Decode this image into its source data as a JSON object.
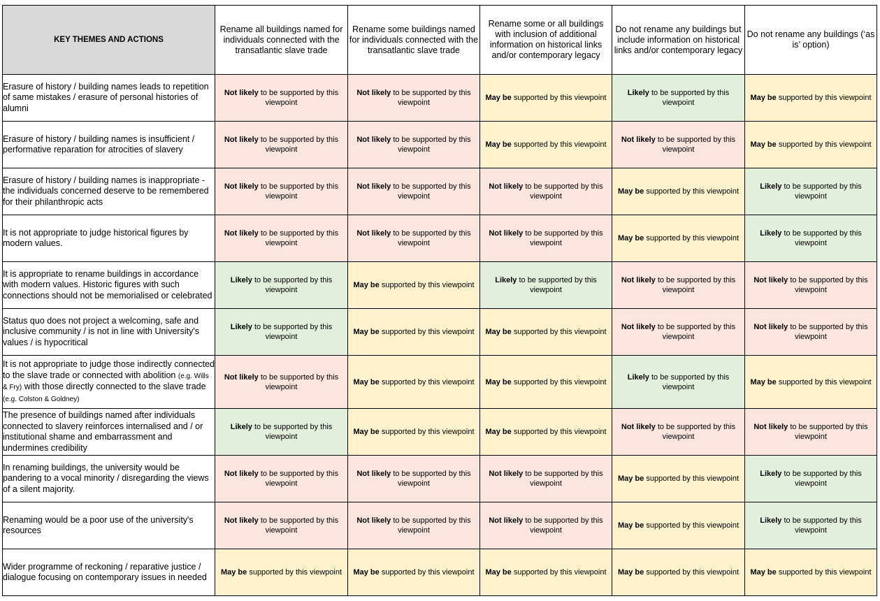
{
  "header": {
    "key_label": "KEY THEMES AND ACTIONS",
    "options": [
      "Rename all buildings named for individuals connected with the transatlantic slave trade",
      "Rename some buildings named for individuals connected with the transatlantic slave trade",
      "Rename some or all buildings with inclusion of additional information on historical links and/or contemporary legacy",
      "Do not rename any buildings but include information on historical links and/or contemporary legacy",
      "Do not rename any buildings (‘as is’ option)"
    ]
  },
  "labels": {
    "not_likely_bold": "Not likely",
    "not_likely_rest": " to be supported by this viewpoint",
    "may_be_bold": "May be",
    "may_be_rest": " supported by this viewpoint",
    "likely_bold": "Likely",
    "likely_rest": " to be supported by this viewpoint"
  },
  "colors": {
    "not_likely": "#fce5dc",
    "may_be": "#fff2cc",
    "likely": "#e2efda",
    "header_key": "#d9d9d9"
  },
  "rows": [
    {
      "theme": "Erasure of history / building names leads to repetition of same mistakes / erasure of personal histories of alumni",
      "cells": [
        "not_likely",
        "not_likely",
        "may_be",
        "likely",
        "may_be"
      ]
    },
    {
      "theme": "Erasure of history / building names is insufficient / performative reparation for atrocities of slavery",
      "cells": [
        "not_likely",
        "not_likely",
        "may_be",
        "not_likely",
        "may_be"
      ]
    },
    {
      "theme": "Erasure of history / building names is inappropriate - the individuals concerned deserve to be remembered for their philanthropic acts",
      "cells": [
        "not_likely",
        "not_likely",
        "not_likely",
        "may_be",
        "likely"
      ]
    },
    {
      "theme": "It is not appropriate to judge historical figures by modern values.",
      "cells": [
        "not_likely",
        "not_likely",
        "not_likely",
        "may_be",
        "likely"
      ]
    },
    {
      "theme": "It is appropriate to rename buildings in accordance with modern values. Historic figures with such connections should not be memorialised or celebrated",
      "cells": [
        "likely",
        "may_be",
        "likely",
        "not_likely",
        "not_likely"
      ]
    },
    {
      "theme": "Status quo does not project a welcoming, safe and inclusive community / is not in line with University's values / is hypocritical",
      "cells": [
        "likely",
        "may_be",
        "may_be",
        "not_likely",
        "not_likely"
      ]
    },
    {
      "theme_parts": [
        "It is not appropriate to judge those indirectly connected to the slave trade or connected with abolition ",
        "(e.g. Wills & Fry)",
        " with those directly connected to the slave trade ",
        "(e.g. Colston & Goldney)"
      ],
      "cells": [
        "not_likely",
        "may_be",
        "may_be",
        "likely",
        "may_be"
      ]
    },
    {
      "theme": "The presence of buildings named after individuals connected to slavery reinforces internalised and / or institutional shame and embarrassment and undermines credibility",
      "cells": [
        "likely",
        "may_be",
        "may_be",
        "not_likely",
        "not_likely"
      ]
    },
    {
      "theme": "In renaming buildings, the university would be pandering to a vocal minority / disregarding the views of a silent majority.",
      "cells": [
        "not_likely",
        "not_likely",
        "not_likely",
        "may_be",
        "likely"
      ]
    },
    {
      "theme": "Renaming would be a poor use of the university's resources",
      "cells": [
        "not_likely",
        "not_likely",
        "not_likely",
        "may_be",
        "likely"
      ]
    },
    {
      "theme": "Wider programme of reckoning / reparative justice / dialogue focusing on contemporary issues in needed",
      "cells": [
        "may_be",
        "may_be",
        "may_be",
        "may_be",
        "may_be"
      ]
    }
  ]
}
